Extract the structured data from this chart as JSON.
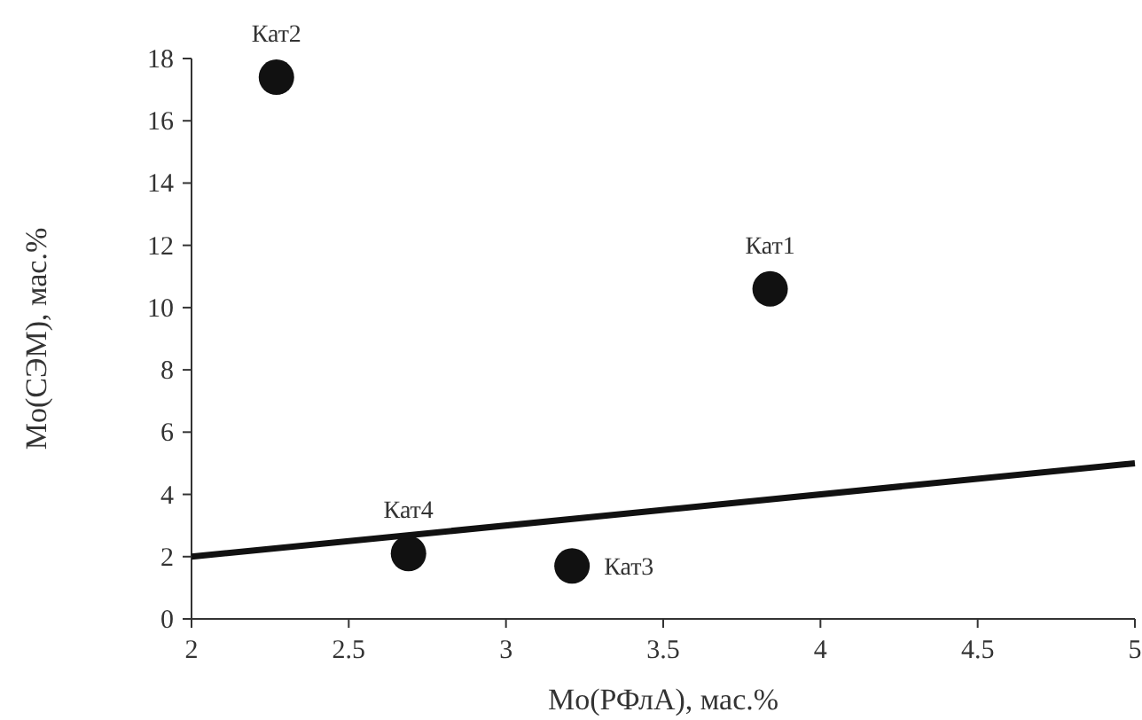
{
  "chart_data": {
    "type": "scatter",
    "xlabel": "Mo(РФлА), мас.%",
    "ylabel": "Mo(СЭМ), мас.%",
    "xlim": [
      2,
      5
    ],
    "xticks": [
      2,
      2.5,
      3,
      3.5,
      4,
      4.5,
      5
    ],
    "ylim": [
      0,
      18
    ],
    "yticks": [
      0,
      2,
      4,
      6,
      8,
      10,
      12,
      14,
      16,
      18
    ],
    "grid": false,
    "marker": "circle",
    "series": [
      {
        "color": "#111111",
        "x": [
          3.84,
          2.27,
          3.21,
          2.69
        ],
        "values": [
          10.6,
          17.4,
          1.7,
          2.1
        ]
      },
      {
        "type": "line",
        "color": "#111111",
        "x": [
          2,
          5
        ],
        "values": [
          2,
          5
        ],
        "marker": "none",
        "line_style": "solid"
      }
    ],
    "annotations": [
      {
        "text": "Кат1",
        "x": 3.84,
        "y": 10.6
      },
      {
        "text": "Кат2",
        "x": 2.27,
        "y": 17.4
      },
      {
        "text": "Кат3",
        "x": 3.21,
        "y": 1.7
      },
      {
        "text": "Кат4",
        "x": 2.69,
        "y": 2.1
      }
    ]
  }
}
